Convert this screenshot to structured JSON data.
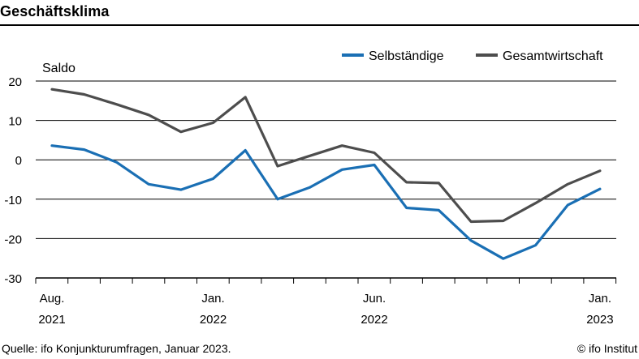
{
  "header": {
    "title": "Geschäftsklima"
  },
  "footer": {
    "source": "Quelle: ifo Konjunkturumfragen, Januar 2023.",
    "brand": "© ifo Institut"
  },
  "chart_data": {
    "type": "line",
    "title": "Geschäftsklima",
    "ylabel": "Saldo",
    "ylim": [
      -30,
      20
    ],
    "yticks": [
      20,
      10,
      0,
      -10,
      -20,
      -30
    ],
    "grid": true,
    "legend_position": "top-right",
    "x": [
      "2021-08",
      "2021-09",
      "2021-10",
      "2021-11",
      "2021-12",
      "2022-01",
      "2022-02",
      "2022-03",
      "2022-04",
      "2022-05",
      "2022-06",
      "2022-07",
      "2022-08",
      "2022-09",
      "2022-10",
      "2022-11",
      "2022-12",
      "2023-01"
    ],
    "xtick_labels": [
      {
        "month": "Aug.",
        "year": "2021",
        "at": "2021-08"
      },
      {
        "month": "Jan.",
        "year": "2022",
        "at": "2022-01"
      },
      {
        "month": "Jun.",
        "year": "2022",
        "at": "2022-06"
      },
      {
        "month": "Jan.",
        "year": "2023",
        "at": "2023-01"
      }
    ],
    "series": [
      {
        "name": "Selbständige",
        "color": "#1a6fb4",
        "values": [
          3.6,
          2.6,
          -0.6,
          -6.2,
          -7.6,
          -4.8,
          2.4,
          -10.0,
          -7.0,
          -2.5,
          -1.3,
          -12.2,
          -12.8,
          -20.5,
          -25.1,
          -21.7,
          -11.5,
          -7.4
        ]
      },
      {
        "name": "Gesamtwirtschaft",
        "color": "#4d4d4d",
        "values": [
          17.9,
          16.6,
          14.1,
          11.4,
          7.1,
          9.4,
          15.9,
          -1.6,
          1.0,
          3.6,
          1.8,
          -5.7,
          -5.9,
          -15.7,
          -15.5,
          -11.0,
          -6.2,
          -2.8
        ]
      }
    ]
  }
}
